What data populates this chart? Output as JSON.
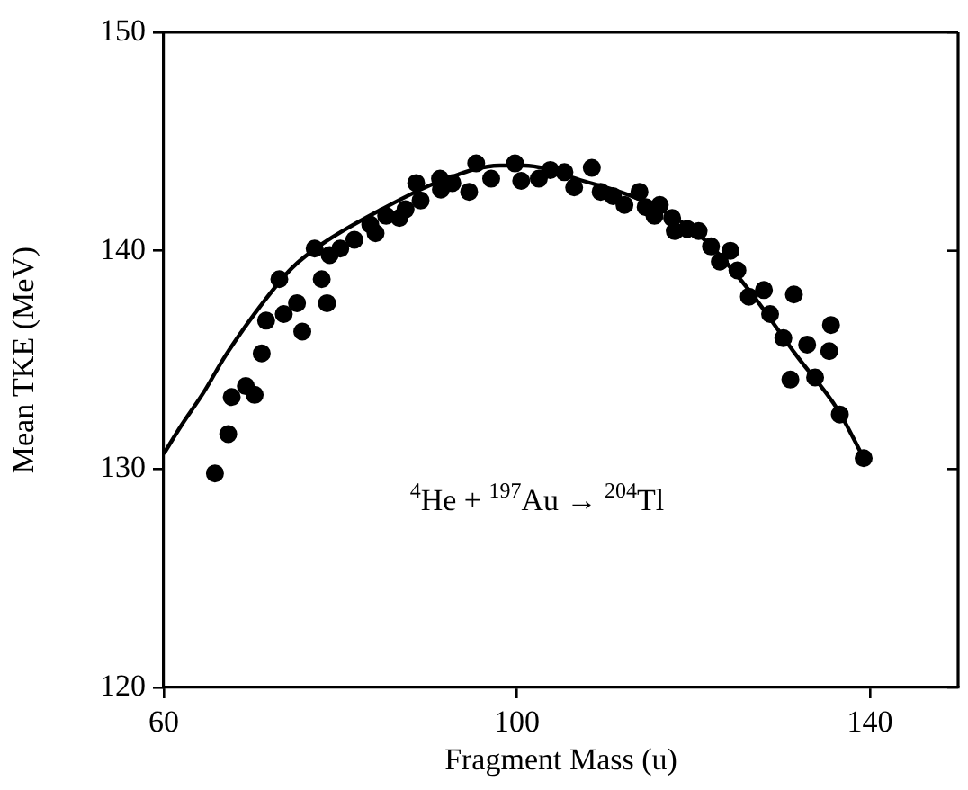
{
  "chart_data": {
    "type": "scatter",
    "xlabel": "Fragment Mass (u)",
    "ylabel": "Mean TKE (MeV)",
    "xlim": [
      60,
      150
    ],
    "ylim": [
      120,
      150
    ],
    "xticks": [
      60,
      100,
      140
    ],
    "yticks": [
      120,
      130,
      140,
      150
    ],
    "grid": false,
    "legend": false,
    "marker": "circle",
    "annotations": [
      "$^{4}$He + $^{197}$Au → $^{204}$Tl"
    ],
    "series": [
      {
        "color": "#000000",
        "x": [
          65.8,
          67.3,
          67.7,
          69.3,
          70.3,
          71.1,
          71.6,
          73.1,
          73.6,
          75.1,
          75.7,
          77.1,
          77.9,
          78.5,
          78.8,
          80.0,
          81.6,
          83.4,
          84.0,
          85.2,
          86.7,
          87.4,
          88.6,
          89.1,
          91.3,
          91.4,
          92.7,
          94.6,
          95.4,
          97.1,
          99.8,
          100.5,
          102.5,
          103.8,
          105.4,
          106.5,
          108.5,
          109.5,
          110.9,
          112.2,
          113.9,
          114.6,
          115.6,
          116.2,
          117.6,
          117.9,
          119.3,
          120.6,
          122.0,
          123.0,
          124.2,
          125.0,
          126.3,
          128.0,
          128.7,
          131.4,
          130.2,
          132.9,
          135.6,
          135.4,
          131.0,
          133.8,
          136.6,
          139.3
        ],
        "values": [
          129.8,
          131.6,
          133.3,
          133.8,
          133.4,
          135.3,
          136.8,
          138.7,
          137.1,
          137.6,
          136.3,
          140.1,
          138.7,
          137.6,
          139.8,
          140.1,
          140.5,
          141.2,
          140.8,
          141.6,
          141.5,
          141.9,
          143.1,
          142.3,
          143.3,
          142.8,
          143.1,
          142.7,
          144.0,
          143.3,
          144.0,
          143.2,
          143.3,
          143.7,
          143.6,
          142.9,
          143.8,
          142.7,
          142.5,
          142.1,
          142.7,
          142.0,
          141.6,
          142.1,
          141.5,
          140.9,
          141.0,
          140.9,
          140.2,
          139.5,
          140.0,
          139.1,
          137.9,
          138.2,
          137.1,
          138.0,
          136.0,
          135.7,
          136.6,
          135.4,
          134.1,
          134.2,
          132.5,
          130.5
        ]
      },
      {
        "type": "line",
        "color": "#000000",
        "marker": "none",
        "line_style": "solid",
        "x": [
          60,
          62,
          64.5,
          67,
          71.2,
          74.5,
          77.9,
          84.7,
          91.4,
          98.1,
          100.8,
          107.5,
          114.2,
          121.0,
          126.3,
          131.7,
          136.4,
          139.3
        ],
        "values": [
          130.7,
          132.0,
          133.5,
          135.2,
          137.6,
          139.2,
          140.3,
          141.9,
          143.2,
          143.9,
          143.9,
          143.2,
          142.3,
          140.6,
          138.2,
          135.2,
          132.7,
          130.5
        ]
      }
    ]
  }
}
